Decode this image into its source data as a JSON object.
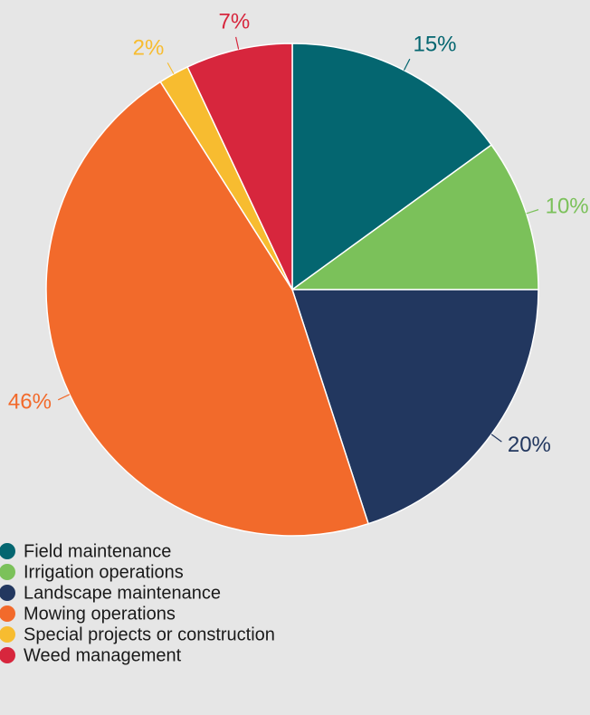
{
  "chart_data": {
    "type": "pie",
    "categories": [
      "Field maintenance",
      "Irrigation operations",
      "Landscape maintenance",
      "Mowing operations",
      "Special projects or construction",
      "Weed management"
    ],
    "values": [
      15,
      10,
      20,
      46,
      2,
      7
    ],
    "value_labels": [
      "15%",
      "10%",
      "20%",
      "46%",
      "2%",
      "7%"
    ],
    "colors": [
      "#046670",
      "#7bc15a",
      "#22375f",
      "#f26a2b",
      "#f7bc30",
      "#d7263d"
    ],
    "legend": "bottom-left"
  }
}
